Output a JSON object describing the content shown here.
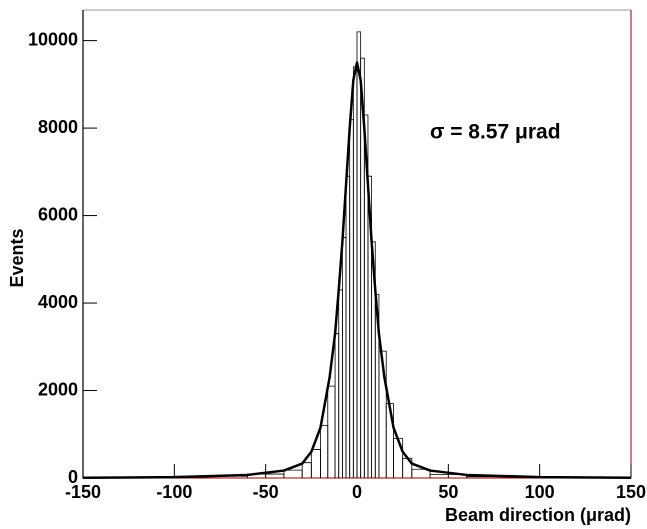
{
  "chart_data": {
    "type": "histogram",
    "bins": [
      -150,
      -100,
      -60,
      -40,
      -30,
      -25,
      -20,
      -16,
      -12,
      -10,
      -8,
      -6,
      -4,
      -2,
      0,
      2,
      4,
      6,
      8,
      10,
      12,
      16,
      20,
      25,
      30,
      40,
      60,
      100,
      150
    ],
    "counts": [
      20,
      40,
      90,
      180,
      350,
      650,
      1200,
      2100,
      3300,
      4300,
      5500,
      6900,
      8200,
      9400,
      10200,
      9600,
      8300,
      6900,
      5400,
      4200,
      2900,
      1700,
      900,
      450,
      200,
      80,
      30,
      15
    ],
    "color": "#000000",
    "fit": {
      "x": [
        -150,
        -100,
        -60,
        -40,
        -30,
        -25,
        -20,
        -15,
        -12,
        -10,
        -8,
        -6,
        -4,
        -2,
        0,
        2,
        4,
        6,
        8,
        10,
        12,
        15,
        20,
        25,
        30,
        40,
        60,
        100,
        150
      ],
      "values": [
        5,
        20,
        70,
        170,
        330,
        600,
        1150,
        2300,
        3300,
        4300,
        5400,
        6700,
        8000,
        9100,
        9500,
        9100,
        8000,
        6700,
        5400,
        4300,
        3300,
        2300,
        1150,
        600,
        330,
        170,
        70,
        20,
        5
      ],
      "color": "#000000"
    },
    "annotation": "σ =  8.57 μrad",
    "x_label": "Beam direction (μrad)",
    "y_label": "Events",
    "xlim": [
      -150,
      150
    ],
    "xticks": [
      -150,
      -100,
      -50,
      0,
      50,
      100,
      150
    ],
    "ylim": [
      0,
      10700
    ],
    "yticks": [
      0,
      2000,
      4000,
      6000,
      8000,
      10000
    ]
  }
}
